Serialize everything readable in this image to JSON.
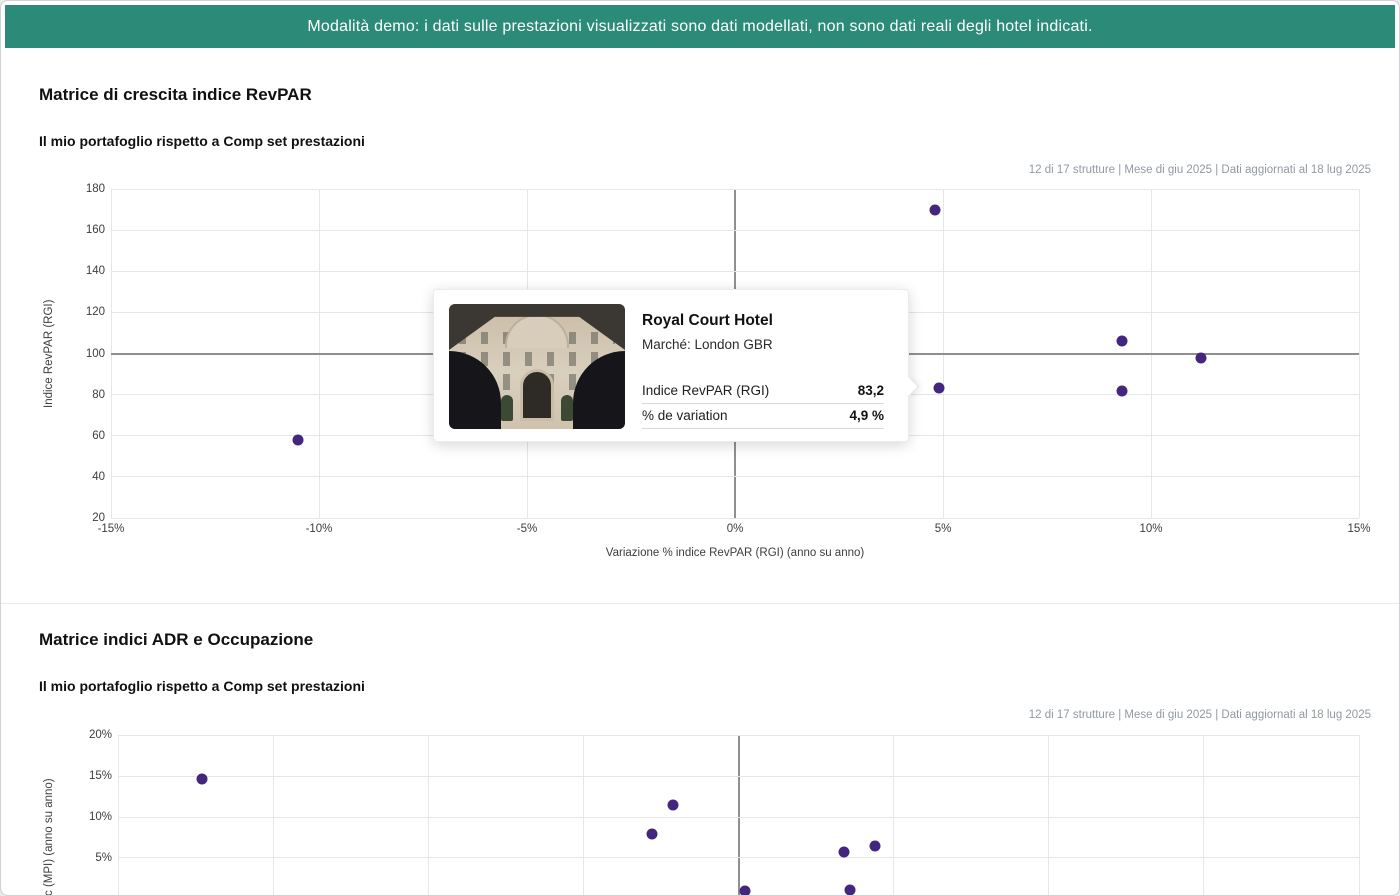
{
  "banner": {
    "text": "Modalità demo: i dati sulle prestazioni visualizzati sono dati modellati, non sono dati reali degli hotel indicati.",
    "bg_color": "#2B8B78"
  },
  "colors": {
    "point": "#45267E",
    "grid": "#e6e6e8",
    "grid_emphasis": "#8f8f92",
    "meta_text": "#9299a2"
  },
  "sections": [
    {
      "title": "Matrice di crescita indice RevPAR",
      "subtitle": "Il mio portafoglio rispetto a Comp set prestazioni",
      "meta": "12 di 17 strutture | Mese di giu 2025 | Dati aggiornati al 18 lug 2025"
    },
    {
      "title": "Matrice indici ADR e Occupazione",
      "subtitle": "Il mio portafoglio rispetto a Comp set prestazioni",
      "meta": "12 di 17 strutture | Mese di giu 2025 | Dati aggiornati al 18 lug 2025"
    }
  ],
  "chart_data": [
    {
      "type": "scatter",
      "title": "Matrice di crescita indice RevPAR",
      "xlabel": "Variazione % indice RevPAR (RGI) (anno su anno)",
      "ylabel": "Indice RevPAR (RGI)",
      "xlim": [
        -15,
        15
      ],
      "ylim": [
        20,
        180
      ],
      "x_ticks": [
        {
          "v": -15,
          "label": "-15%"
        },
        {
          "v": -10,
          "label": "-10%"
        },
        {
          "v": -5,
          "label": "-5%"
        },
        {
          "v": 0,
          "label": "0%"
        },
        {
          "v": 5,
          "label": "5%"
        },
        {
          "v": 10,
          "label": "10%"
        },
        {
          "v": 15,
          "label": "15%"
        }
      ],
      "y_ticks": [
        {
          "v": 180,
          "label": "180"
        },
        {
          "v": 160,
          "label": "160"
        },
        {
          "v": 140,
          "label": "140"
        },
        {
          "v": 120,
          "label": "120"
        },
        {
          "v": 100,
          "label": "100"
        },
        {
          "v": 80,
          "label": "80"
        },
        {
          "v": 60,
          "label": "60"
        },
        {
          "v": 40,
          "label": "40"
        },
        {
          "v": 20,
          "label": "20"
        }
      ],
      "emphasis_x_line": 0,
      "emphasis_y_line": 100,
      "grid": true,
      "points": [
        {
          "x": -10.5,
          "y": 58
        },
        {
          "x": 4.8,
          "y": 170
        },
        {
          "x": 4.9,
          "y": 83.2,
          "name": "Royal Court Hotel"
        },
        {
          "x": 9.3,
          "y": 106
        },
        {
          "x": 9.3,
          "y": 82
        },
        {
          "x": 11.2,
          "y": 98
        }
      ]
    },
    {
      "type": "scatter",
      "title": "Matrice indici ADR e Occupazione",
      "xlabel": "",
      "ylabel_visible": "c (MPI) (anno su anno)",
      "xlim": [
        -20,
        20
      ],
      "ylim": [
        0,
        20
      ],
      "x_ticks": [
        {
          "v": -20
        },
        {
          "v": -15
        },
        {
          "v": -10
        },
        {
          "v": -5
        },
        {
          "v": 0
        },
        {
          "v": 5
        },
        {
          "v": 10
        },
        {
          "v": 15
        },
        {
          "v": 20
        }
      ],
      "y_ticks": [
        {
          "v": 20,
          "label": "20%"
        },
        {
          "v": 15,
          "label": "15%"
        },
        {
          "v": 10,
          "label": "10%"
        },
        {
          "v": 5,
          "label": "5%"
        }
      ],
      "emphasis_x_line": 0,
      "grid": true,
      "points": [
        {
          "x": -17.3,
          "y": 14.7
        },
        {
          "x": -2.8,
          "y": 7.9
        },
        {
          "x": -2.1,
          "y": 11.5
        },
        {
          "x": 0.2,
          "y": 0.9
        },
        {
          "x": 3.4,
          "y": 5.7
        },
        {
          "x": 4.4,
          "y": 6.4
        },
        {
          "x": 3.6,
          "y": 1.0
        }
      ]
    }
  ],
  "tooltip": {
    "hotel_name": "Royal Court Hotel",
    "market": "Marché: London GBR",
    "rows": [
      {
        "label": "Indice RevPAR (RGI)",
        "value": "83,2"
      },
      {
        "label": "% de variation",
        "value": "4,9 %"
      }
    ]
  }
}
